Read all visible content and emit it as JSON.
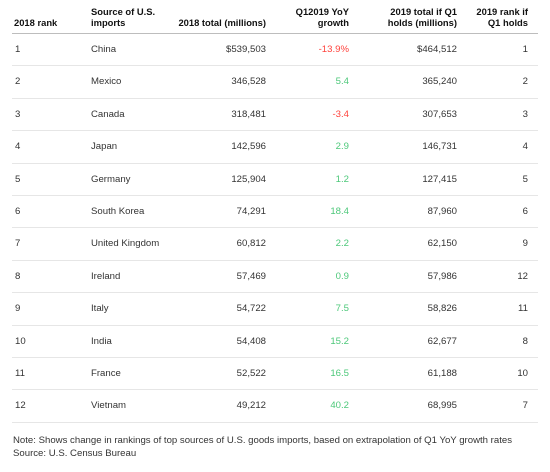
{
  "colors": {
    "negative": "#ff433d",
    "positive": "#4dc87a"
  },
  "headers": {
    "rank_2018": "2018 rank",
    "source": "Source of U.S. imports",
    "total_2018": "2018 total (millions)",
    "growth": "Q12019 YoY growth",
    "total_2019": "2019 total if Q1 holds (millions)",
    "rank_2019": "2019 rank if Q1 holds"
  },
  "rows": [
    {
      "rank": "1",
      "country": "China",
      "total2018": "$539,503",
      "growth": "-13.9%",
      "total2019": "$464,512",
      "rank2019": "1",
      "dir": "neg"
    },
    {
      "rank": "2",
      "country": "Mexico",
      "total2018": "346,528",
      "growth": "5.4",
      "total2019": "365,240",
      "rank2019": "2",
      "dir": "pos"
    },
    {
      "rank": "3",
      "country": "Canada",
      "total2018": "318,481",
      "growth": "-3.4",
      "total2019": "307,653",
      "rank2019": "3",
      "dir": "neg"
    },
    {
      "rank": "4",
      "country": "Japan",
      "total2018": "142,596",
      "growth": "2.9",
      "total2019": "146,731",
      "rank2019": "4",
      "dir": "pos"
    },
    {
      "rank": "5",
      "country": "Germany",
      "total2018": "125,904",
      "growth": "1.2",
      "total2019": "127,415",
      "rank2019": "5",
      "dir": "pos"
    },
    {
      "rank": "6",
      "country": "South Korea",
      "total2018": "74,291",
      "growth": "18.4",
      "total2019": "87,960",
      "rank2019": "6",
      "dir": "pos"
    },
    {
      "rank": "7",
      "country": "United Kingdom",
      "total2018": "60,812",
      "growth": "2.2",
      "total2019": "62,150",
      "rank2019": "9",
      "dir": "pos"
    },
    {
      "rank": "8",
      "country": "Ireland",
      "total2018": "57,469",
      "growth": "0.9",
      "total2019": "57,986",
      "rank2019": "12",
      "dir": "pos"
    },
    {
      "rank": "9",
      "country": "Italy",
      "total2018": "54,722",
      "growth": "7.5",
      "total2019": "58,826",
      "rank2019": "11",
      "dir": "pos"
    },
    {
      "rank": "10",
      "country": "India",
      "total2018": "54,408",
      "growth": "15.2",
      "total2019": "62,677",
      "rank2019": "8",
      "dir": "pos"
    },
    {
      "rank": "11",
      "country": "France",
      "total2018": "52,522",
      "growth": "16.5",
      "total2019": "61,188",
      "rank2019": "10",
      "dir": "pos"
    },
    {
      "rank": "12",
      "country": "Vietnam",
      "total2018": "49,212",
      "growth": "40.2",
      "total2019": "68,995",
      "rank2019": "7",
      "dir": "pos"
    }
  ],
  "note": "Note: Shows change in rankings of top sources of U.S. goods imports, based on extrapolation of Q1 YoY growth rates Source: U.S. Census Bureau"
}
